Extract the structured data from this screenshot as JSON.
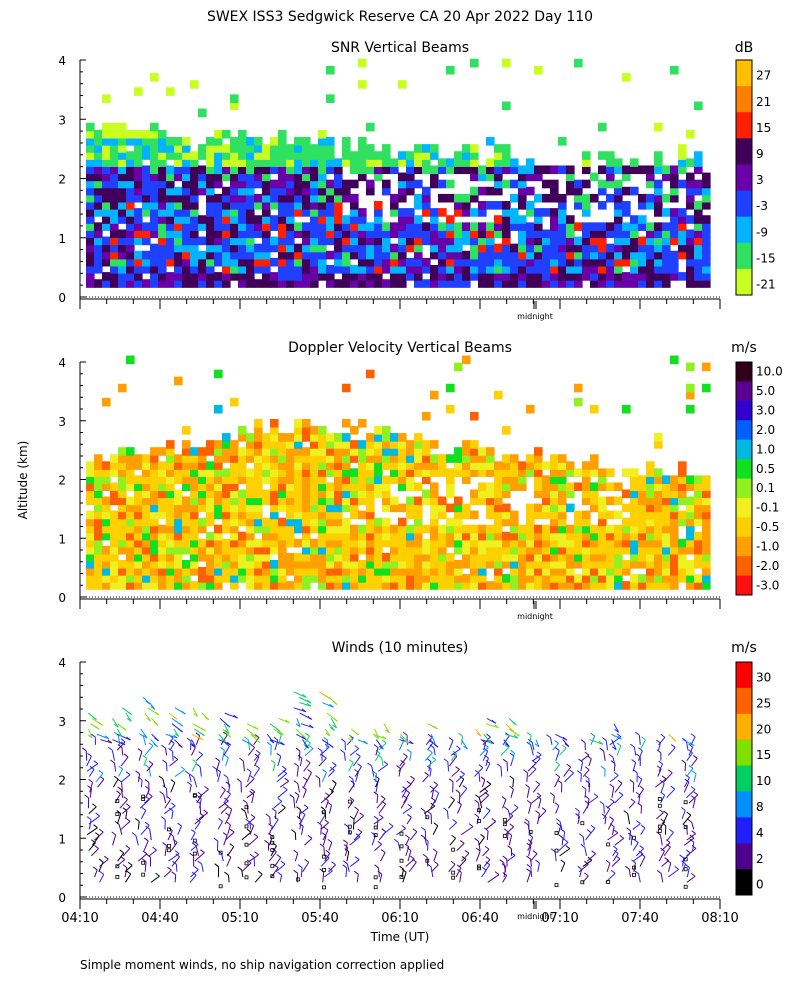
{
  "figure": {
    "title": "SWEX ISS3 Sedgwick Reserve CA  20 Apr 2022 Day 110",
    "y_axis_label": "Altitude (km)",
    "x_axis_label": "Time (UT)",
    "footnote": "Simple moment winds, no ship navigation correction applied",
    "midnight_label": "midnight"
  },
  "chart_data": [
    {
      "type": "heatmap",
      "title": "SNR Vertical Beams",
      "colorbar_title": "dB",
      "colorbar_labels": [
        "27",
        "21",
        "15",
        "9",
        "3",
        "-3",
        "-9",
        "-15",
        "-21"
      ],
      "colorbar_colors": [
        "#ffc000",
        "#ff8000",
        "#ff2000",
        "#40005a",
        "#6a00a8",
        "#2040ff",
        "#00b4ff",
        "#30e060",
        "#c8ff20"
      ],
      "ylim": [
        0,
        4
      ],
      "yticks": [
        "0",
        "1",
        "2",
        "3",
        "4"
      ],
      "xlim_hours": [
        4.167,
        8.167
      ],
      "data_top_km": 2.3,
      "sparse_top_km": 4.0,
      "dominant_low": "dark purple / blue bands",
      "dominant_high": "green / yellow-green"
    },
    {
      "type": "heatmap",
      "title": "Doppler Velocity Vertical Beams",
      "colorbar_title": "m/s",
      "colorbar_labels": [
        "10.0",
        "5.0",
        "3.0",
        "2.0",
        "1.0",
        "0.5",
        "0.1",
        "-0.1",
        "-0.5",
        "-1.0",
        "-2.0",
        "-3.0"
      ],
      "colorbar_colors": [
        "#300018",
        "#5a0090",
        "#3000d0",
        "#0060ff",
        "#00b8e0",
        "#10e020",
        "#90f020",
        "#f0f020",
        "#ffd000",
        "#ffa000",
        "#ff6000",
        "#ff1010"
      ],
      "ylim": [
        0,
        4
      ],
      "yticks": [
        "0",
        "1",
        "2",
        "3",
        "4"
      ],
      "xlim_hours": [
        4.167,
        8.167
      ],
      "dominant": "yellow / orange (slight downward motion)"
    },
    {
      "type": "scatter",
      "title": "Winds (10 minutes)",
      "colorbar_title": "m/s",
      "colorbar_labels": [
        "30",
        "25",
        "20",
        "15",
        "10",
        "8",
        "4",
        "2",
        "0"
      ],
      "colorbar_colors": [
        "#ff0000",
        "#ff6000",
        "#ffb000",
        "#80e000",
        "#00d060",
        "#0090ff",
        "#2020ff",
        "#500090",
        "#000000"
      ],
      "ylim": [
        0,
        4
      ],
      "yticks": [
        "0",
        "1",
        "2",
        "3",
        "4"
      ],
      "xticks": [
        "04:10",
        "04:40",
        "05:10",
        "05:40",
        "06:10",
        "06:40",
        "07:10",
        "07:40",
        "08:10"
      ],
      "barb_interval_minutes": 10,
      "typical_speed_low_ms": 4,
      "typical_speed_high_ms": 20
    }
  ]
}
